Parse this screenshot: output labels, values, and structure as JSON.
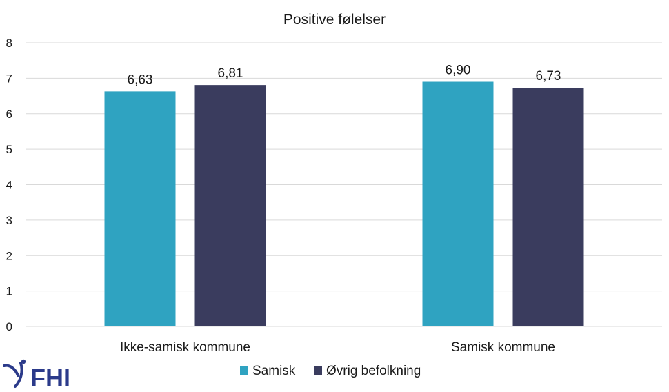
{
  "chart_data": {
    "type": "bar",
    "title": "Positive følelser",
    "categories": [
      "Ikke-samisk kommune",
      "Samisk kommune"
    ],
    "series": [
      {
        "name": "Samisk",
        "values": [
          6.63,
          6.9
        ],
        "labels": [
          "6,63",
          "6,90"
        ],
        "color": "#2fa3c1"
      },
      {
        "name": "Øvrig befolkning",
        "values": [
          6.81,
          6.73
        ],
        "labels": [
          "6,81",
          "6,73"
        ],
        "color": "#3a3c5e"
      }
    ],
    "ylim": [
      0,
      8
    ],
    "yticks": [
      "0",
      "1",
      "2",
      "3",
      "4",
      "5",
      "6",
      "7",
      "8"
    ],
    "grid": true,
    "legend": "bottom-center"
  },
  "logo": {
    "text": "FHI",
    "color": "#2b3a8a"
  }
}
